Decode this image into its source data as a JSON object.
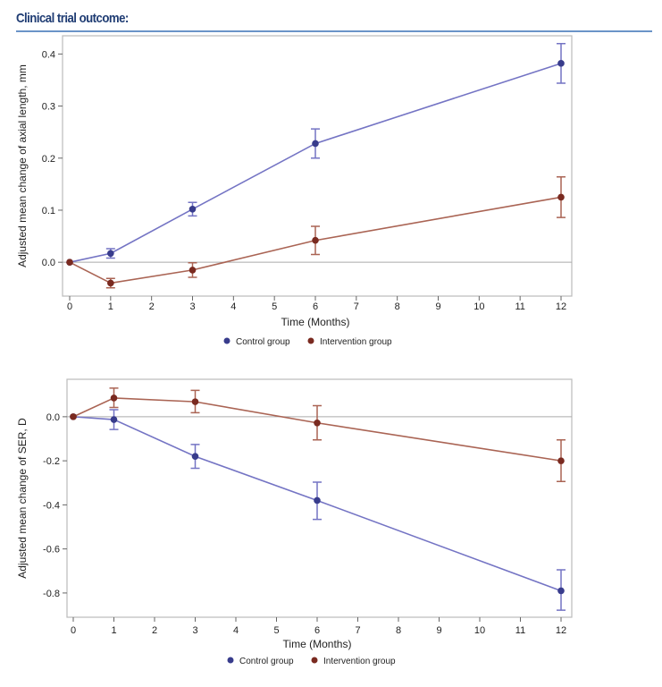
{
  "header": {
    "title": "Clinical trial outcome:"
  },
  "colors": {
    "control_marker": "#383c8c",
    "control_line": "#7474c4",
    "intervention_marker": "#7a2a20",
    "intervention_line": "#aa6454",
    "rule": "#6b94c8"
  },
  "chart_data": [
    {
      "type": "line",
      "title": "",
      "xlabel": "Time (Months)",
      "ylabel": "Adjusted mean change of axial length, mm",
      "xlim": [
        0,
        12
      ],
      "ylim": [
        -0.065,
        0.435
      ],
      "xticks": [
        0,
        1,
        2,
        3,
        4,
        5,
        6,
        7,
        8,
        9,
        10,
        11,
        12
      ],
      "yticks": [
        0.0,
        0.1,
        0.2,
        0.3,
        0.4
      ],
      "ytick_labels": [
        "0.0",
        "0.1",
        "0.2",
        "0.3",
        "0.4"
      ],
      "reference_line": 0,
      "legend": {
        "placement": "bottom",
        "entries": [
          "Control group",
          "Intervention group"
        ]
      },
      "series": [
        {
          "name": "Control group",
          "x": [
            0,
            1,
            3,
            6,
            12
          ],
          "y": [
            0,
            0.017,
            0.102,
            0.228,
            0.382
          ],
          "lower": [
            0,
            0.008,
            0.089,
            0.2,
            0.344
          ],
          "upper": [
            0,
            0.026,
            0.115,
            0.256,
            0.42
          ]
        },
        {
          "name": "Intervention group",
          "x": [
            0,
            1,
            3,
            6,
            12
          ],
          "y": [
            0,
            -0.04,
            -0.015,
            0.042,
            0.125
          ],
          "lower": [
            0,
            -0.049,
            -0.029,
            0.015,
            0.086
          ],
          "upper": [
            0,
            -0.031,
            -0.001,
            0.069,
            0.164
          ]
        }
      ]
    },
    {
      "type": "line",
      "title": "",
      "xlabel": "Time (Months)",
      "ylabel": "Adjusted mean change of SER, D",
      "xlim": [
        0,
        12
      ],
      "ylim": [
        -0.91,
        0.17
      ],
      "xticks": [
        0,
        1,
        2,
        3,
        4,
        5,
        6,
        7,
        8,
        9,
        10,
        11,
        12
      ],
      "yticks": [
        0.0,
        -0.2,
        -0.4,
        -0.6,
        -0.8
      ],
      "ytick_labels": [
        "0.0",
        "-0.2",
        "-0.4",
        "-0.6",
        "-0.8"
      ],
      "reference_line": 0,
      "legend": {
        "placement": "bottom",
        "entries": [
          "Control group",
          "Intervention group"
        ]
      },
      "series": [
        {
          "name": "Control group",
          "x": [
            0,
            1,
            3,
            6,
            12
          ],
          "y": [
            0,
            -0.013,
            -0.18,
            -0.38,
            -0.79
          ],
          "lower": [
            0,
            -0.058,
            -0.234,
            -0.466,
            -0.878
          ],
          "upper": [
            0,
            0.032,
            -0.126,
            -0.297,
            -0.695
          ]
        },
        {
          "name": "Intervention group",
          "x": [
            0,
            1,
            3,
            6,
            12
          ],
          "y": [
            0,
            0.085,
            0.068,
            -0.028,
            -0.2
          ],
          "lower": [
            0,
            0.042,
            0.018,
            -0.105,
            -0.294
          ],
          "upper": [
            0,
            0.13,
            0.12,
            0.05,
            -0.105
          ]
        }
      ]
    }
  ]
}
